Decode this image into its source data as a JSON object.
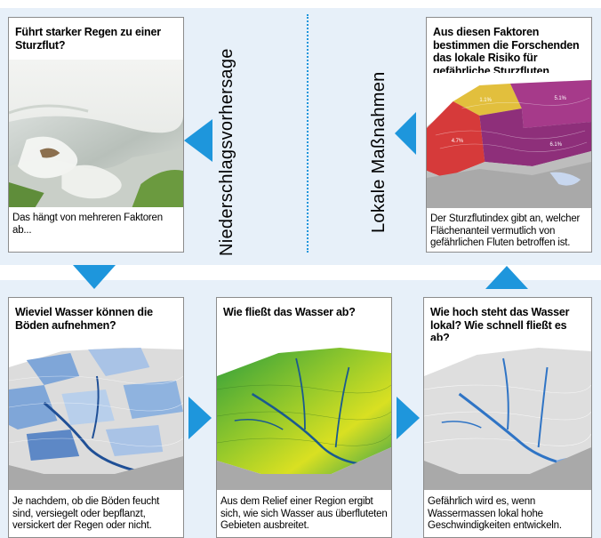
{
  "cards": {
    "rain": {
      "title": "Führt starker Regen zu einer Sturzflut?",
      "caption": "Das hängt von mehreren Faktoren ab..."
    },
    "risk": {
      "title": "Aus diesen Faktoren bestimmen die Forschenden das lokale Risiko für gefährliche Sturzfluten.",
      "caption": "Der Sturzflutindex gibt an, welcher Flächenanteil vermutlich von gefährlichen Fluten betroffen ist.",
      "zone_labels": [
        "1.1%",
        "5.1%",
        "4.7%",
        "6.1%"
      ]
    },
    "soil": {
      "title": "Wieviel Wasser können die Böden aufnehmen?",
      "caption": "Je nachdem, ob die Böden feucht sind, versiegelt oder bepflanzt, versickert der Regen oder nicht."
    },
    "flow": {
      "title": "Wie fließt das Wasser ab?",
      "caption": "Aus dem Relief einer Region ergibt sich, wie sich Wasser aus überfluteten Gebieten ausbreitet."
    },
    "level": {
      "title": "Wie hoch steht das Wasser lokal? Wie schnell fließt es ab?",
      "caption": "Gefährlich wird es, wenn Wassermassen lokal hohe Geschwindigkeiten entwickeln."
    }
  },
  "labels": {
    "left": "Niederschlagsvorhersage",
    "right": "Lokale Maßnahmen"
  },
  "colors": {
    "arrow": "#1e96dc",
    "background": "#e7f0f9",
    "divider": "#1e96dc"
  }
}
